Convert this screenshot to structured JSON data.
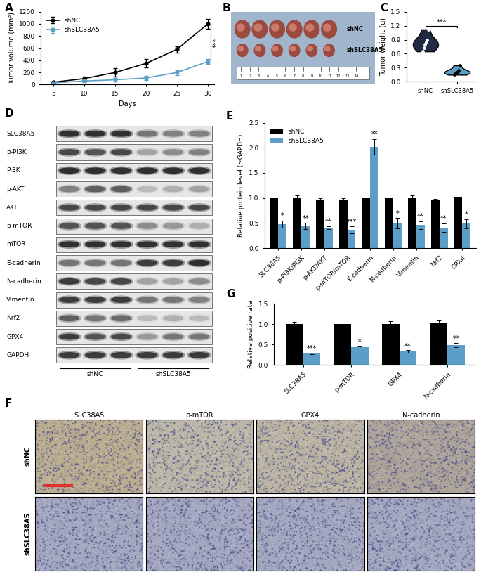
{
  "panel_labels": [
    "A",
    "B",
    "C",
    "D",
    "E",
    "F",
    "G"
  ],
  "chart_data": [
    {
      "type": "line",
      "x": [
        5,
        10,
        15,
        20,
        25,
        30
      ],
      "xlabel": "Days",
      "ylabel": "Tumor volume (mm³)",
      "xlim": [
        3,
        31
      ],
      "xticks": [
        5,
        10,
        15,
        20,
        25,
        30
      ],
      "ylim": [
        0,
        1200
      ],
      "yticks": [
        0,
        200,
        400,
        600,
        800,
        1000,
        1200
      ],
      "legend": "upper left",
      "annotations": [
        "***"
      ],
      "series": [
        {
          "name": "shNC",
          "color": "#000000",
          "marker": "circle",
          "values": [
            40,
            100,
            200,
            350,
            580,
            1000
          ],
          "errors": [
            10,
            30,
            70,
            70,
            50,
            80
          ]
        },
        {
          "name": "shSLC38A5",
          "color": "#5b9fc8",
          "marker": "square",
          "values": [
            30,
            60,
            80,
            110,
            200,
            380
          ],
          "errors": [
            5,
            15,
            30,
            30,
            40,
            40
          ]
        }
      ]
    },
    {
      "type": "violin",
      "categories": [
        "shNC",
        "shSLC38A5"
      ],
      "ylabel": "Tumor weight (g)",
      "ylim": [
        0,
        1.5
      ],
      "yticks": [
        {
          "value": 0,
          "label": "0.0"
        },
        0.3,
        0.6,
        0.9,
        1.2,
        1.5
      ],
      "colors": [
        "#1f2a44",
        "#5b9fc8"
      ],
      "annotations": [
        "***"
      ],
      "points": [
        [
          0.65,
          0.72,
          0.8,
          0.85,
          0.9,
          1.12
        ],
        [
          0.15,
          0.18,
          0.2,
          0.22,
          0.25,
          0.35
        ]
      ]
    },
    {
      "type": "bar",
      "categories": [
        "SLC38A5",
        "p-PI3K/PI3K",
        "p-AKT/AKT",
        "p-mTOR/mTOR",
        "E-cadherin",
        "N-cadherin",
        "Vimentin",
        "Nrf2",
        "GPX4"
      ],
      "ylabel": "Relative protein level (~GAPDH)",
      "ylim": [
        0,
        2.5
      ],
      "yticks": [
        {
          "value": 0,
          "label": "0.0"
        },
        0.5,
        {
          "value": 1,
          "label": "1.0"
        },
        1.5,
        {
          "value": 2,
          "label": "2.0"
        },
        2.5
      ],
      "legend": "upper left",
      "series": [
        {
          "name": "shNC",
          "color": "#000000",
          "values": [
            1.0,
            1.0,
            0.95,
            0.95,
            1.0,
            0.99,
            1.0,
            0.95,
            1.01
          ],
          "errors": [
            0.03,
            0.05,
            0.04,
            0.04,
            0.03,
            0.01,
            0.05,
            0.03,
            0.06
          ]
        },
        {
          "name": "shSLC38A5",
          "color": "#5b9fc8",
          "values": [
            0.48,
            0.44,
            0.41,
            0.36,
            2.02,
            0.5,
            0.46,
            0.41,
            0.49
          ],
          "errors": [
            0.07,
            0.06,
            0.03,
            0.07,
            0.15,
            0.1,
            0.08,
            0.08,
            0.09
          ],
          "significance": [
            "*",
            "**",
            "**",
            "***",
            "**",
            "*",
            "**",
            "**",
            "*"
          ]
        }
      ]
    },
    {
      "type": "bar",
      "categories": [
        "SLC38A5",
        "p-mTOR",
        "GPX4",
        "N-cadherin"
      ],
      "ylabel": "Relative positive rate",
      "ylim": [
        0,
        1.5
      ],
      "yticks": [
        {
          "value": 0,
          "label": "0.0"
        },
        0.5,
        {
          "value": 1,
          "label": "1.0"
        },
        1.5
      ],
      "series": [
        {
          "name": "shNC",
          "color": "#000000",
          "values": [
            1.0,
            1.0,
            1.0,
            1.02
          ],
          "errors": [
            0.06,
            0.03,
            0.07,
            0.07
          ]
        },
        {
          "name": "shSLC38A5",
          "color": "#5b9fc8",
          "values": [
            0.28,
            0.43,
            0.33,
            0.49
          ],
          "errors": [
            0.02,
            0.03,
            0.03,
            0.05
          ],
          "significance": [
            "***",
            "*",
            "**",
            "**"
          ]
        }
      ]
    }
  ],
  "photo": {
    "row_labels": [
      "shNC",
      "shSLC38A5"
    ],
    "counts": [
      6,
      6
    ],
    "ruler_marks": [
      1,
      2,
      3,
      4,
      5,
      6,
      7,
      8,
      9,
      10,
      11,
      12,
      13,
      14
    ]
  },
  "blot": {
    "groups": [
      "shNC",
      "shSLC38A5"
    ],
    "rows": [
      {
        "name": "SLC38A5",
        "bands": [
          0.9,
          0.9,
          0.9,
          0.6,
          0.55,
          0.55
        ]
      },
      {
        "name": "p-PI3K",
        "bands": [
          0.8,
          0.75,
          0.8,
          0.4,
          0.5,
          0.55
        ]
      },
      {
        "name": "PI3K",
        "bands": [
          0.9,
          0.9,
          0.9,
          0.9,
          0.9,
          0.9
        ]
      },
      {
        "name": "p-AKT",
        "bands": [
          0.55,
          0.7,
          0.7,
          0.3,
          0.35,
          0.4
        ]
      },
      {
        "name": "AKT",
        "bands": [
          0.8,
          0.8,
          0.8,
          0.8,
          0.8,
          0.8
        ]
      },
      {
        "name": "p-mTOR",
        "bands": [
          0.75,
          0.75,
          0.75,
          0.5,
          0.45,
          0.35
        ]
      },
      {
        "name": "mTOR",
        "bands": [
          0.9,
          0.9,
          0.9,
          0.9,
          0.9,
          0.9
        ]
      },
      {
        "name": "E-cadherin",
        "bands": [
          0.6,
          0.6,
          0.6,
          0.85,
          0.85,
          0.9
        ]
      },
      {
        "name": "N-cadherin",
        "bands": [
          0.85,
          0.8,
          0.8,
          0.4,
          0.4,
          0.5
        ]
      },
      {
        "name": "Vimentin",
        "bands": [
          0.85,
          0.85,
          0.85,
          0.6,
          0.6,
          0.55
        ]
      },
      {
        "name": "Nrf2",
        "bands": [
          0.7,
          0.6,
          0.65,
          0.3,
          0.35,
          0.3
        ]
      },
      {
        "name": "GPX4",
        "bands": [
          0.85,
          0.75,
          0.8,
          0.45,
          0.6,
          0.6
        ]
      },
      {
        "name": "GAPDH",
        "bands": [
          0.85,
          0.85,
          0.85,
          0.85,
          0.85,
          0.85
        ]
      }
    ]
  },
  "ihc": {
    "columns": [
      "SLC38A5",
      "p-mTOR",
      "GPX4",
      "N-cadherin"
    ],
    "rows": [
      "shNC",
      "shSLC38A5"
    ]
  }
}
